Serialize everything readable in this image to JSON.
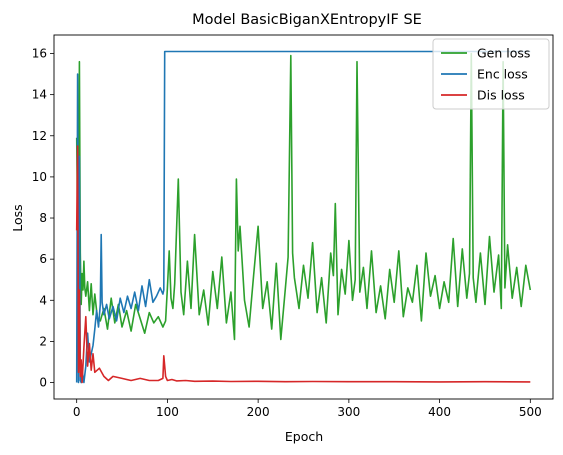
{
  "chart_data": {
    "type": "line",
    "title": "Model BasicBiganXEntropyIF SE",
    "xlabel": "Epoch",
    "ylabel": "Loss",
    "xlim": [
      -25,
      525
    ],
    "ylim": [
      -0.8,
      16.9
    ],
    "xticks": [
      0,
      100,
      200,
      300,
      400,
      500
    ],
    "yticks": [
      0,
      2,
      4,
      6,
      8,
      10,
      12,
      14,
      16
    ],
    "grid": false,
    "legend": "top-right",
    "series": [
      {
        "name": "Gen loss",
        "color": "#2ca02c",
        "x": [
          0,
          1,
          2,
          3,
          4,
          5,
          6,
          7,
          8,
          9,
          10,
          12,
          14,
          16,
          18,
          20,
          23,
          26,
          30,
          34,
          38,
          42,
          46,
          50,
          55,
          60,
          65,
          70,
          75,
          80,
          85,
          90,
          95,
          98,
          100,
          102,
          104,
          106,
          108,
          112,
          115,
          118,
          122,
          126,
          130,
          135,
          140,
          145,
          150,
          155,
          160,
          165,
          170,
          174,
          176,
          178,
          180,
          185,
          190,
          195,
          200,
          205,
          210,
          215,
          220,
          225,
          230,
          233,
          236,
          238,
          240,
          245,
          250,
          255,
          260,
          265,
          270,
          275,
          280,
          283,
          285,
          288,
          292,
          296,
          300,
          304,
          307,
          309,
          312,
          316,
          320,
          325,
          330,
          335,
          340,
          345,
          350,
          355,
          360,
          365,
          370,
          375,
          380,
          385,
          390,
          395,
          400,
          405,
          410,
          415,
          420,
          425,
          430,
          433,
          435,
          437,
          440,
          445,
          450,
          455,
          460,
          465,
          468,
          470,
          472,
          475,
          480,
          485,
          490,
          495,
          500
        ],
        "y": [
          11.9,
          7.2,
          5.6,
          15.6,
          6.3,
          3.8,
          5.3,
          4.5,
          5.9,
          4.6,
          4.2,
          4.9,
          3.5,
          4.8,
          3.3,
          4.3,
          3.1,
          3.0,
          3.6,
          2.6,
          4.1,
          2.9,
          3.8,
          2.7,
          3.5,
          2.5,
          3.8,
          3.1,
          2.4,
          3.4,
          2.9,
          3.2,
          2.7,
          3.0,
          4.6,
          6.4,
          4.1,
          3.6,
          4.8,
          9.9,
          4.4,
          3.3,
          5.9,
          3.6,
          7.2,
          3.3,
          4.5,
          2.8,
          5.4,
          3.6,
          6.1,
          2.9,
          4.4,
          2.1,
          9.9,
          6.4,
          7.6,
          4.0,
          2.7,
          5.2,
          7.6,
          3.6,
          4.9,
          2.6,
          5.8,
          2.1,
          4.6,
          6.1,
          15.9,
          6.3,
          5.1,
          3.6,
          5.7,
          4.1,
          6.8,
          3.4,
          5.1,
          2.9,
          6.3,
          5.2,
          8.7,
          3.3,
          5.5,
          4.3,
          6.9,
          4.0,
          5.0,
          15.6,
          4.4,
          5.6,
          3.6,
          6.4,
          3.4,
          4.7,
          3.1,
          5.5,
          3.9,
          6.4,
          3.2,
          4.6,
          3.9,
          5.7,
          3.0,
          6.3,
          4.2,
          5.2,
          3.6,
          4.9,
          3.9,
          7.0,
          3.7,
          6.5,
          4.1,
          5.3,
          16.0,
          5.1,
          3.9,
          6.3,
          3.8,
          7.1,
          4.4,
          6.2,
          3.6,
          15.6,
          4.6,
          6.7,
          4.1,
          5.6,
          3.7,
          5.7,
          4.5
        ]
      },
      {
        "name": "Enc loss",
        "color": "#1f77b4",
        "x": [
          0,
          1,
          2,
          3,
          4,
          5,
          6,
          8,
          10,
          12,
          14,
          16,
          18,
          20,
          22,
          24,
          26,
          27,
          28,
          30,
          33,
          36,
          40,
          44,
          48,
          52,
          56,
          60,
          64,
          68,
          72,
          76,
          80,
          84,
          88,
          92,
          95,
          96,
          97,
          100,
          200,
          300,
          400,
          500
        ],
        "y": [
          0.0,
          15.0,
          0.0,
          11.0,
          0.1,
          0.0,
          0.6,
          0.0,
          0.8,
          2.4,
          1.0,
          1.4,
          1.8,
          2.6,
          3.5,
          2.7,
          3.8,
          7.2,
          3.9,
          3.3,
          3.8,
          3.1,
          3.7,
          3.0,
          4.1,
          3.4,
          4.2,
          3.6,
          4.4,
          3.5,
          4.7,
          3.7,
          5.0,
          3.9,
          4.2,
          4.6,
          4.3,
          4.5,
          16.1,
          16.1,
          16.1,
          16.1,
          16.1,
          16.1
        ]
      },
      {
        "name": "Dis loss",
        "color": "#d62728",
        "x": [
          0,
          1,
          2,
          3,
          4,
          5,
          6,
          8,
          10,
          12,
          14,
          16,
          18,
          20,
          25,
          30,
          35,
          40,
          50,
          60,
          70,
          80,
          90,
          95,
          96,
          97,
          98,
          100,
          105,
          110,
          120,
          130,
          150,
          170,
          200,
          230,
          260,
          300,
          350,
          400,
          450,
          500
        ],
        "y": [
          7.4,
          11.5,
          0.5,
          4.5,
          0.3,
          1.1,
          0.0,
          1.7,
          3.2,
          0.8,
          1.9,
          0.6,
          1.4,
          0.5,
          0.7,
          0.3,
          0.1,
          0.3,
          0.2,
          0.1,
          0.2,
          0.1,
          0.1,
          0.2,
          1.3,
          0.8,
          0.3,
          0.1,
          0.15,
          0.08,
          0.1,
          0.06,
          0.07,
          0.05,
          0.06,
          0.04,
          0.05,
          0.04,
          0.04,
          0.03,
          0.04,
          0.03
        ]
      }
    ]
  }
}
